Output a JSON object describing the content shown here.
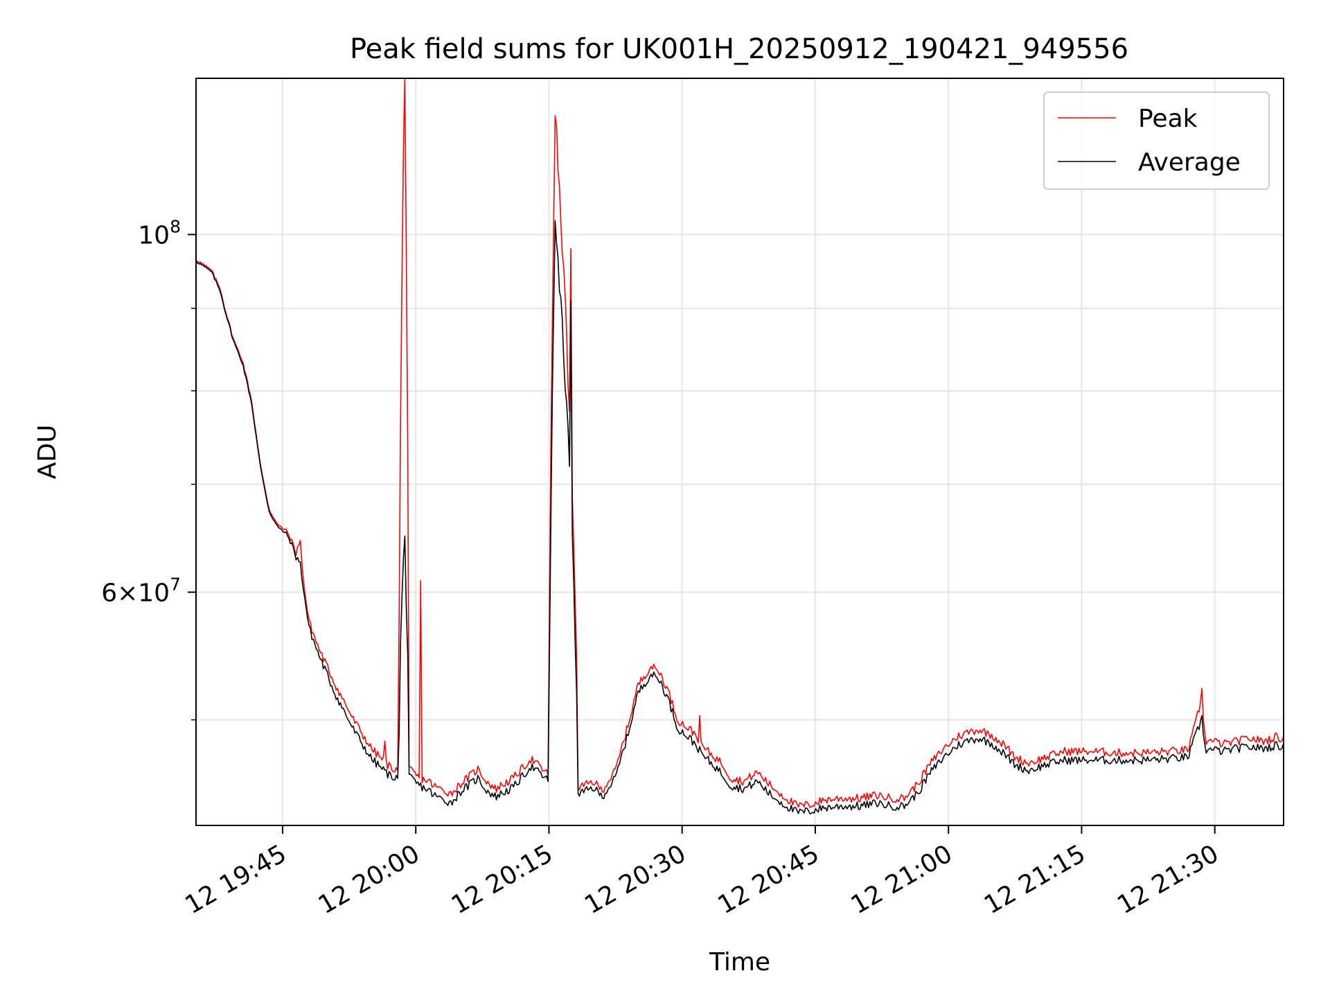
{
  "chart_data": {
    "type": "line",
    "title": "Peak field sums for UK001H_20250912_190421_949556",
    "xlabel": "Time",
    "ylabel": "ADU",
    "y_scale": "log",
    "xlim": [
      "2025-09-12 19:35:15",
      "2025-09-12 21:37:45"
    ],
    "ylim": [
      43000000,
      125000000
    ],
    "grid": true,
    "legend_position": "top-right",
    "x_ticks": [
      {
        "time": "2025-09-12 19:45",
        "label": "12 19:45"
      },
      {
        "time": "2025-09-12 20:00",
        "label": "12 20:00"
      },
      {
        "time": "2025-09-12 20:15",
        "label": "12 20:15"
      },
      {
        "time": "2025-09-12 20:30",
        "label": "12 20:30"
      },
      {
        "time": "2025-09-12 20:45",
        "label": "12 20:45"
      },
      {
        "time": "2025-09-12 21:00",
        "label": "12 21:00"
      },
      {
        "time": "2025-09-12 21:15",
        "label": "12 21:15"
      },
      {
        "time": "2025-09-12 21:30",
        "label": "12 21:30"
      }
    ],
    "y_major_ticks": [
      {
        "value": 100000000,
        "base": "10",
        "exp": "8"
      },
      {
        "value": 60000000,
        "mantissa": "6",
        "base": "10",
        "exp": "7"
      }
    ],
    "y_minor_ticks": [
      50000000,
      70000000,
      80000000,
      90000000
    ],
    "series": [
      {
        "name": "Peak",
        "color": "#ff0000",
        "points": [
          [
            "2025-09-12 19:35:15",
            96500000
          ],
          [
            "2025-09-12 19:37:00",
            95000000
          ],
          [
            "2025-09-12 19:38:00",
            92500000
          ],
          [
            "2025-09-12 19:38:30",
            90000000
          ],
          [
            "2025-09-12 19:39:30",
            86000000
          ],
          [
            "2025-09-12 19:40:30",
            83500000
          ],
          [
            "2025-09-12 19:41:30",
            79000000
          ],
          [
            "2025-09-12 19:42:30",
            72000000
          ],
          [
            "2025-09-12 19:43:30",
            67500000
          ],
          [
            "2025-09-12 19:44:30",
            66000000
          ],
          [
            "2025-09-12 19:45:30",
            65500000
          ],
          [
            "2025-09-12 19:46:30",
            63500000
          ],
          [
            "2025-09-12 19:47:00",
            64500000
          ],
          [
            "2025-09-12 19:47:30",
            60000000
          ],
          [
            "2025-09-12 19:48:00",
            57500000
          ],
          [
            "2025-09-12 19:49:00",
            55500000
          ],
          [
            "2025-09-12 19:51:00",
            52500000
          ],
          [
            "2025-09-12 19:53:00",
            50000000
          ],
          [
            "2025-09-12 19:55:00",
            48000000
          ],
          [
            "2025-09-12 19:57:00",
            46800000
          ],
          [
            "2025-09-12 19:58:00",
            46500000
          ],
          [
            "2025-09-12 19:59:30",
            46500000
          ],
          [
            "2025-09-12 20:00:00",
            46200000
          ],
          [
            "2025-09-12 20:00:30",
            46000000
          ],
          [
            "2025-09-12 20:01:30",
            45800000
          ],
          [
            "2025-09-12 20:02:00",
            45500000
          ],
          [
            "2025-09-12 20:04:00",
            45000000
          ],
          [
            "2025-09-12 20:05:00",
            45600000
          ],
          [
            "2025-09-12 20:07:00",
            46600000
          ],
          [
            "2025-09-12 20:08:00",
            45800000
          ],
          [
            "2025-09-12 20:09:00",
            45300000
          ],
          [
            "2025-09-12 20:11:00",
            46000000
          ],
          [
            "2025-09-12 20:13:00",
            47300000
          ],
          [
            "2025-09-12 20:15:00",
            46200000
          ],
          [
            "2025-09-12 20:16:30",
            45800000
          ],
          [
            "2025-09-12 20:18:00",
            45400000
          ],
          [
            "2025-09-12 20:19:00",
            45500000
          ],
          [
            "2025-09-12 20:20:00",
            45800000
          ],
          [
            "2025-09-12 20:21:00",
            45200000
          ],
          [
            "2025-09-12 20:22:30",
            46500000
          ],
          [
            "2025-09-12 20:24:00",
            49800000
          ],
          [
            "2025-09-12 20:25:00",
            52500000
          ],
          [
            "2025-09-12 20:26:30",
            54000000
          ],
          [
            "2025-09-12 20:27:30",
            53500000
          ],
          [
            "2025-09-12 20:28:30",
            52000000
          ],
          [
            "2025-09-12 20:29:30",
            50000000
          ],
          [
            "2025-09-12 20:30:30",
            49500000
          ],
          [
            "2025-09-12 20:31:30",
            49000000
          ],
          [
            "2025-09-12 20:32:30",
            48000000
          ],
          [
            "2025-09-12 20:33:30",
            47500000
          ],
          [
            "2025-09-12 20:34:30",
            47000000
          ],
          [
            "2025-09-12 20:35:30",
            46000000
          ],
          [
            "2025-09-12 20:37:00",
            45800000
          ],
          [
            "2025-09-12 20:38:30",
            46400000
          ],
          [
            "2025-09-12 20:40:00",
            45500000
          ],
          [
            "2025-09-12 20:41:30",
            44800000
          ],
          [
            "2025-09-12 20:43:00",
            44200000
          ],
          [
            "2025-09-12 20:44:30",
            44300000
          ],
          [
            "2025-09-12 20:46:00",
            44600000
          ],
          [
            "2025-09-12 20:48:00",
            44700000
          ],
          [
            "2025-09-12 20:50:00",
            44700000
          ],
          [
            "2025-09-12 20:52:00",
            44900000
          ],
          [
            "2025-09-12 20:53:30",
            44700000
          ],
          [
            "2025-09-12 20:55:00",
            44700000
          ],
          [
            "2025-09-12 20:56:30",
            45600000
          ],
          [
            "2025-09-12 20:58:00",
            47000000
          ],
          [
            "2025-09-12 20:59:30",
            48000000
          ],
          [
            "2025-09-12 21:01:00",
            48800000
          ],
          [
            "2025-09-12 21:02:30",
            49200000
          ],
          [
            "2025-09-12 21:03:30",
            49300000
          ],
          [
            "2025-09-12 21:05:00",
            48900000
          ],
          [
            "2025-09-12 21:06:30",
            48100000
          ],
          [
            "2025-09-12 21:07:30",
            47400000
          ],
          [
            "2025-09-12 21:09:00",
            47000000
          ],
          [
            "2025-09-12 21:11:00",
            47400000
          ],
          [
            "2025-09-12 21:13:00",
            47800000
          ],
          [
            "2025-09-12 21:16:00",
            47800000
          ],
          [
            "2025-09-12 21:19:00",
            47700000
          ],
          [
            "2025-09-12 21:22:00",
            47700000
          ],
          [
            "2025-09-12 21:25:00",
            47800000
          ],
          [
            "2025-09-12 21:27:00",
            47900000
          ],
          [
            "2025-09-12 21:27:45",
            49500000
          ],
          [
            "2025-09-12 21:28:30",
            51500000
          ],
          [
            "2025-09-12 21:29:00",
            48500000
          ],
          [
            "2025-09-12 21:29:45",
            48500000
          ],
          [
            "2025-09-12 21:31:00",
            48300000
          ],
          [
            "2025-09-12 21:32:30",
            48500000
          ],
          [
            "2025-09-12 21:34:00",
            48700000
          ],
          [
            "2025-09-12 21:35:30",
            48500000
          ],
          [
            "2025-09-12 21:37:00",
            48800000
          ],
          [
            "2025-09-12 21:37:45",
            48600000
          ]
        ],
        "spikes": [
          [
            "2025-09-12 19:47:00",
            64500000
          ],
          [
            "2025-09-12 19:56:30",
            48500000
          ],
          [
            "2025-09-12 19:58:45",
            125000000
          ],
          [
            "2025-09-12 20:00:30",
            61000000
          ],
          [
            "2025-09-12 20:15:45",
            118500000
          ],
          [
            "2025-09-12 20:17:30",
            98000000
          ],
          [
            "2025-09-12 20:32:00",
            50300000
          ],
          [
            "2025-09-12 21:28:30",
            52300000
          ]
        ],
        "bursts": [
          {
            "start": "2025-09-12 19:58:05",
            "end": "2025-09-12 19:59:15",
            "peak_time": "2025-09-12 19:58:45",
            "peak_value": 125000000,
            "base": 46500000
          },
          {
            "start": "2025-09-12 20:15:00",
            "end": "2025-09-12 20:18:15",
            "peak_time": "2025-09-12 20:15:45",
            "peak_value": 118500000,
            "base": 46200000
          }
        ]
      },
      {
        "name": "Average",
        "color": "#000000",
        "points": [
          [
            "2025-09-12 19:35:15",
            96300000
          ],
          [
            "2025-09-12 19:37:00",
            94800000
          ],
          [
            "2025-09-12 19:38:00",
            92200000
          ],
          [
            "2025-09-12 19:38:30",
            89800000
          ],
          [
            "2025-09-12 19:39:30",
            85800000
          ],
          [
            "2025-09-12 19:40:30",
            83200000
          ],
          [
            "2025-09-12 19:41:30",
            78700000
          ],
          [
            "2025-09-12 19:42:30",
            71800000
          ],
          [
            "2025-09-12 19:43:30",
            67300000
          ],
          [
            "2025-09-12 19:44:30",
            65800000
          ],
          [
            "2025-09-12 19:45:30",
            65200000
          ],
          [
            "2025-09-12 19:46:30",
            63200000
          ],
          [
            "2025-09-12 19:47:00",
            62500000
          ],
          [
            "2025-09-12 19:47:30",
            59500000
          ],
          [
            "2025-09-12 19:48:00",
            57000000
          ],
          [
            "2025-09-12 19:49:00",
            55000000
          ],
          [
            "2025-09-12 19:51:00",
            51800000
          ],
          [
            "2025-09-12 19:53:00",
            49300000
          ],
          [
            "2025-09-12 19:55:00",
            47300000
          ],
          [
            "2025-09-12 19:57:00",
            46200000
          ],
          [
            "2025-09-12 19:58:00",
            46000000
          ],
          [
            "2025-09-12 19:59:30",
            46000000
          ],
          [
            "2025-09-12 20:00:00",
            45700000
          ],
          [
            "2025-09-12 20:00:30",
            45500000
          ],
          [
            "2025-09-12 20:01:30",
            45200000
          ],
          [
            "2025-09-12 20:02:00",
            44900000
          ],
          [
            "2025-09-12 20:04:00",
            44400000
          ],
          [
            "2025-09-12 20:05:00",
            45100000
          ],
          [
            "2025-09-12 20:07:00",
            46000000
          ],
          [
            "2025-09-12 20:08:00",
            45200000
          ],
          [
            "2025-09-12 20:09:00",
            44800000
          ],
          [
            "2025-09-12 20:11:00",
            45400000
          ],
          [
            "2025-09-12 20:13:00",
            46800000
          ],
          [
            "2025-09-12 20:15:00",
            45800000
          ],
          [
            "2025-09-12 20:16:30",
            45300000
          ],
          [
            "2025-09-12 20:18:00",
            45000000
          ],
          [
            "2025-09-12 20:19:00",
            45100000
          ],
          [
            "2025-09-12 20:20:00",
            45400000
          ],
          [
            "2025-09-12 20:21:00",
            44800000
          ],
          [
            "2025-09-12 20:22:30",
            46000000
          ],
          [
            "2025-09-12 20:24:00",
            49200000
          ],
          [
            "2025-09-12 20:25:00",
            51900000
          ],
          [
            "2025-09-12 20:26:30",
            53400000
          ],
          [
            "2025-09-12 20:27:30",
            52900000
          ],
          [
            "2025-09-12 20:28:30",
            51400000
          ],
          [
            "2025-09-12 20:29:30",
            49400000
          ],
          [
            "2025-09-12 20:30:30",
            48900000
          ],
          [
            "2025-09-12 20:31:30",
            48300000
          ],
          [
            "2025-09-12 20:32:30",
            47400000
          ],
          [
            "2025-09-12 20:33:30",
            46900000
          ],
          [
            "2025-09-12 20:34:30",
            46300000
          ],
          [
            "2025-09-12 20:35:30",
            45500000
          ],
          [
            "2025-09-12 20:37:00",
            45300000
          ],
          [
            "2025-09-12 20:38:30",
            45800000
          ],
          [
            "2025-09-12 20:40:00",
            44900000
          ],
          [
            "2025-09-12 20:41:30",
            44300000
          ],
          [
            "2025-09-12 20:43:00",
            43800000
          ],
          [
            "2025-09-12 20:44:30",
            43900000
          ],
          [
            "2025-09-12 20:46:00",
            44100000
          ],
          [
            "2025-09-12 20:48:00",
            44200000
          ],
          [
            "2025-09-12 20:50:00",
            44200000
          ],
          [
            "2025-09-12 20:52:00",
            44400000
          ],
          [
            "2025-09-12 20:53:30",
            44200000
          ],
          [
            "2025-09-12 20:55:00",
            44200000
          ],
          [
            "2025-09-12 20:56:30",
            45000000
          ],
          [
            "2025-09-12 20:58:00",
            46400000
          ],
          [
            "2025-09-12 20:59:30",
            47400000
          ],
          [
            "2025-09-12 21:01:00",
            48200000
          ],
          [
            "2025-09-12 21:02:30",
            48600000
          ],
          [
            "2025-09-12 21:03:30",
            48700000
          ],
          [
            "2025-09-12 21:05:00",
            48300000
          ],
          [
            "2025-09-12 21:06:30",
            47500000
          ],
          [
            "2025-09-12 21:07:30",
            46900000
          ],
          [
            "2025-09-12 21:09:00",
            46500000
          ],
          [
            "2025-09-12 21:11:00",
            46900000
          ],
          [
            "2025-09-12 21:13:00",
            47200000
          ],
          [
            "2025-09-12 21:16:00",
            47200000
          ],
          [
            "2025-09-12 21:19:00",
            47200000
          ],
          [
            "2025-09-12 21:22:00",
            47200000
          ],
          [
            "2025-09-12 21:25:00",
            47300000
          ],
          [
            "2025-09-12 21:27:00",
            47400000
          ],
          [
            "2025-09-12 21:27:45",
            48700000
          ],
          [
            "2025-09-12 21:28:30",
            50000000
          ],
          [
            "2025-09-12 21:29:00",
            47900000
          ],
          [
            "2025-09-12 21:29:45",
            47900000
          ],
          [
            "2025-09-12 21:31:00",
            47800000
          ],
          [
            "2025-09-12 21:32:30",
            48000000
          ],
          [
            "2025-09-12 21:34:00",
            48100000
          ],
          [
            "2025-09-12 21:35:30",
            48000000
          ],
          [
            "2025-09-12 21:37:00",
            48200000
          ],
          [
            "2025-09-12 21:37:45",
            48100000
          ]
        ],
        "spikes": [
          [
            "2025-09-12 19:58:45",
            65000000
          ],
          [
            "2025-09-12 20:15:45",
            102000000
          ],
          [
            "2025-09-12 20:17:30",
            91000000
          ],
          [
            "2025-09-12 21:28:30",
            50300000
          ]
        ],
        "bursts": [
          {
            "start": "2025-09-12 19:58:05",
            "end": "2025-09-12 19:59:15",
            "peak_time": "2025-09-12 19:58:45",
            "peak_value": 65000000,
            "base": 46000000
          },
          {
            "start": "2025-09-12 20:15:00",
            "end": "2025-09-12 20:18:15",
            "peak_time": "2025-09-12 20:15:45",
            "peak_value": 102000000,
            "base": 45800000
          }
        ]
      }
    ]
  }
}
